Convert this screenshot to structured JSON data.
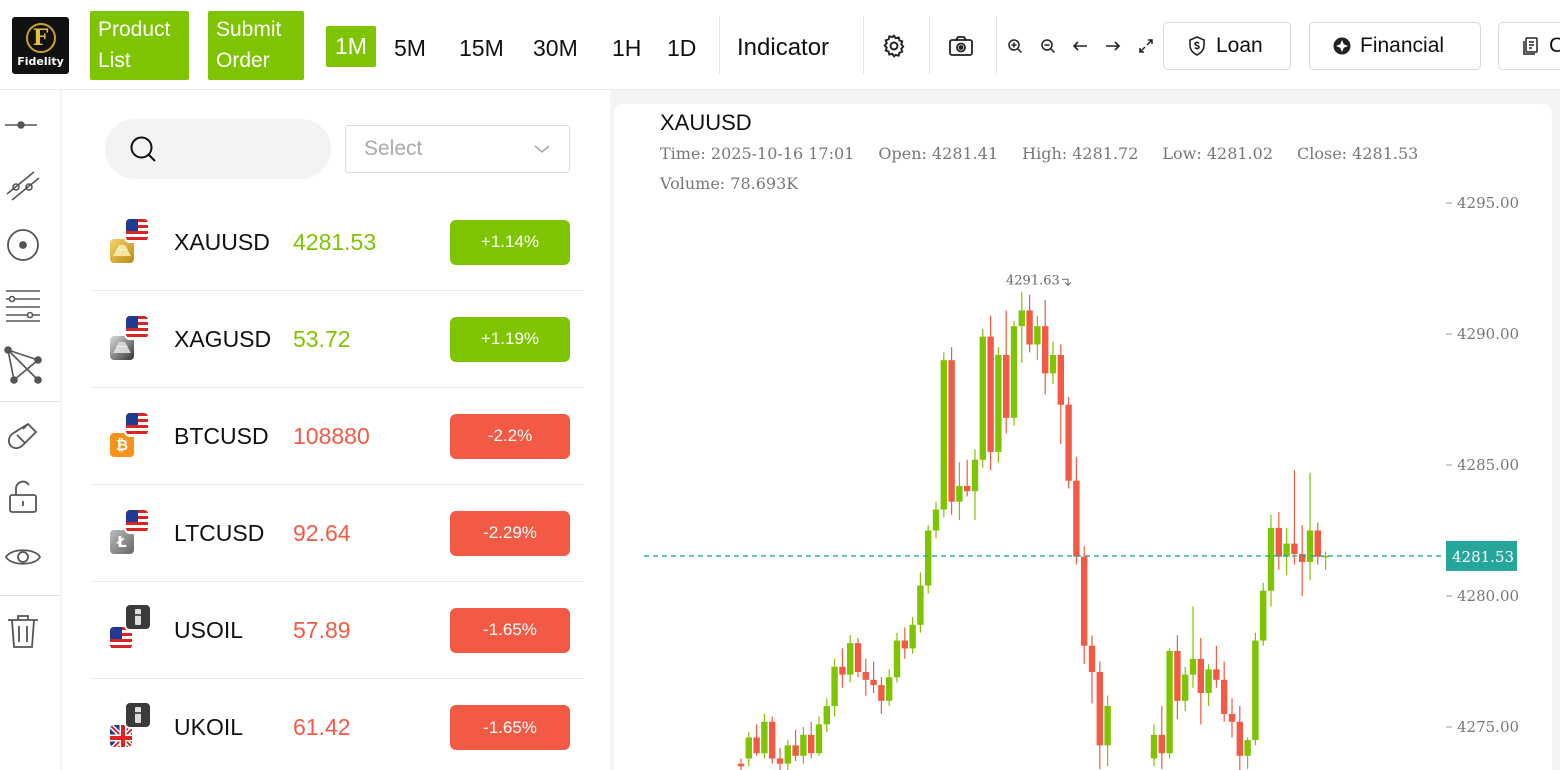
{
  "header": {
    "logo_text": "Fidelity",
    "logo_letter": "F",
    "product_list_label": "Product\nList",
    "submit_order_label": "Submit\nOrder",
    "timeframes": [
      "1M",
      "5M",
      "15M",
      "30M",
      "1H",
      "1D"
    ],
    "active_timeframe": "1M",
    "indicator_label": "Indicator",
    "loan_label": "Loan",
    "financial_label": "Financial",
    "third_pill_label": "C"
  },
  "search": {
    "placeholder": "",
    "select_placeholder": "Select"
  },
  "products": [
    {
      "symbol": "XAUUSD",
      "price": "4281.53",
      "change": "+1.14%",
      "direction": "up",
      "asset_icon": "gold-bars-icon",
      "flag": "us-flag-icon"
    },
    {
      "symbol": "XAGUSD",
      "price": "53.72",
      "change": "+1.19%",
      "direction": "up",
      "asset_icon": "silver-bars-icon",
      "flag": "us-flag-icon"
    },
    {
      "symbol": "BTCUSD",
      "price": "108880",
      "change": "-2.2%",
      "direction": "down",
      "asset_icon": "bitcoin-icon",
      "flag": "us-flag-icon"
    },
    {
      "symbol": "LTCUSD",
      "price": "92.64",
      "change": "-2.29%",
      "direction": "down",
      "asset_icon": "litecoin-icon",
      "flag": "us-flag-icon"
    },
    {
      "symbol": "USOIL",
      "price": "57.89",
      "change": "-1.65%",
      "direction": "down",
      "asset_icon": "oil-barrel-icon",
      "flag": "us-flag-icon"
    },
    {
      "symbol": "UKOIL",
      "price": "61.42",
      "change": "-1.65%",
      "direction": "down",
      "asset_icon": "oil-barrel-icon",
      "flag": "uk-flag-icon"
    }
  ],
  "colors": {
    "up": "#7fc400",
    "down": "#f25a45",
    "last_price_line": "#26a69a"
  },
  "chart_data": {
    "type": "candlestick",
    "symbol": "XAUUSD",
    "info": {
      "time": "Time: 2025-10-16 17:01",
      "open": "Open: 4281.41",
      "high": "High: 4281.72",
      "low": "Low: 4281.02",
      "close": "Close: 4281.53",
      "volume": "Volume: 78.693K"
    },
    "y_ticks": [
      "4295.00",
      "4290.00",
      "4285.00",
      "4280.00",
      "4275.00"
    ],
    "ylim": [
      4273.5,
      4295.5
    ],
    "last_price": "4281.53",
    "last_price_value": 4281.53,
    "max_label": "4291.63",
    "max_value": 4291.63,
    "candles": [
      [
        4273.6,
        4273.8,
        4273.2,
        4273.5
      ],
      [
        4273.8,
        4274.8,
        4273.5,
        4274.6
      ],
      [
        4274.6,
        4275.1,
        4273.9,
        4274.0
      ],
      [
        4274.0,
        4275.5,
        4273.8,
        4275.2
      ],
      [
        4275.2,
        4275.4,
        4273.6,
        4273.8
      ],
      [
        4273.8,
        4274.2,
        4273.1,
        4273.6
      ],
      [
        4273.6,
        4274.5,
        4273.3,
        4274.3
      ],
      [
        4274.3,
        4274.9,
        4273.7,
        4273.9
      ],
      [
        4273.9,
        4275.0,
        4273.6,
        4274.7
      ],
      [
        4274.7,
        4275.2,
        4273.8,
        4274.0
      ],
      [
        4274.0,
        4275.4,
        4273.9,
        4275.1
      ],
      [
        4275.1,
        4276.1,
        4274.8,
        4275.8
      ],
      [
        4275.8,
        4277.6,
        4275.4,
        4277.3
      ],
      [
        4277.3,
        4278.0,
        4276.5,
        4277.0
      ],
      [
        4277.0,
        4278.5,
        4276.7,
        4278.2
      ],
      [
        4278.2,
        4278.4,
        4276.9,
        4277.1
      ],
      [
        4277.1,
        4277.6,
        4276.2,
        4276.8
      ],
      [
        4276.8,
        4277.5,
        4276.3,
        4276.6
      ],
      [
        4276.6,
        4276.9,
        4275.5,
        4276.0
      ],
      [
        4276.0,
        4277.2,
        4275.8,
        4276.9
      ],
      [
        4276.9,
        4278.6,
        4276.7,
        4278.3
      ],
      [
        4278.3,
        4278.8,
        4277.6,
        4278.0
      ],
      [
        4278.0,
        4279.2,
        4277.8,
        4278.9
      ],
      [
        4278.9,
        4280.9,
        4278.6,
        4280.4
      ],
      [
        4280.4,
        4282.7,
        4280.1,
        4282.5
      ],
      [
        4282.5,
        4283.6,
        4282.2,
        4283.3
      ],
      [
        4283.3,
        4289.3,
        4283.0,
        4289.0
      ],
      [
        4289.0,
        4289.5,
        4283.1,
        4283.6
      ],
      [
        4283.6,
        4285.1,
        4282.9,
        4284.2
      ],
      [
        4284.2,
        4285.2,
        4283.8,
        4284.0
      ],
      [
        4284.0,
        4285.6,
        4282.9,
        4285.2
      ],
      [
        4285.2,
        4290.2,
        4284.9,
        4289.9
      ],
      [
        4289.9,
        4290.7,
        4284.8,
        4285.5
      ],
      [
        4285.5,
        4289.5,
        4285.1,
        4289.2
      ],
      [
        4289.2,
        4290.9,
        4286.2,
        4286.8
      ],
      [
        4286.8,
        4290.5,
        4286.5,
        4290.3
      ],
      [
        4290.3,
        4291.6,
        4288.9,
        4290.9
      ],
      [
        4290.9,
        4291.5,
        4289.3,
        4289.6
      ],
      [
        4289.6,
        4290.7,
        4289.0,
        4290.3
      ],
      [
        4290.3,
        4291.3,
        4287.7,
        4288.5
      ],
      [
        4288.5,
        4289.7,
        4288.1,
        4289.2
      ],
      [
        4289.2,
        4289.6,
        4285.8,
        4287.3
      ],
      [
        4287.3,
        4287.6,
        4284.1,
        4284.4
      ],
      [
        4284.4,
        4285.3,
        4281.2,
        4281.5
      ],
      [
        4281.5,
        4281.9,
        4277.4,
        4278.1
      ],
      [
        4278.1,
        4278.5,
        4275.9,
        4277.1
      ],
      [
        4277.1,
        4277.5,
        4273.4,
        4274.3
      ],
      [
        4274.3,
        4276.2,
        4273.5,
        4275.8
      ]
    ],
    "right_candles": [
      [
        4273.8,
        4275.1,
        4273.5,
        4274.7
      ],
      [
        4274.7,
        4275.8,
        4273.4,
        4274.0
      ],
      [
        4274.0,
        4278.0,
        4273.8,
        4277.9
      ],
      [
        4277.9,
        4278.5,
        4275.3,
        4276.0
      ],
      [
        4276.0,
        4277.3,
        4275.6,
        4277.0
      ],
      [
        4277.0,
        4279.6,
        4276.5,
        4277.6
      ],
      [
        4277.6,
        4278.4,
        4275.1,
        4276.3
      ],
      [
        4276.3,
        4277.4,
        4275.8,
        4277.2
      ],
      [
        4277.2,
        4278.1,
        4276.5,
        4276.8
      ],
      [
        4276.8,
        4277.5,
        4275.2,
        4275.5
      ],
      [
        4275.5,
        4276.1,
        4274.6,
        4275.2
      ],
      [
        4275.2,
        4275.8,
        4273.1,
        4273.9
      ],
      [
        4273.9,
        4274.6,
        4273.4,
        4274.5
      ],
      [
        4274.5,
        4278.6,
        4274.3,
        4278.3
      ],
      [
        4278.3,
        4280.5,
        4278.1,
        4280.2
      ],
      [
        4280.2,
        4283.1,
        4279.6,
        4282.6
      ],
      [
        4282.6,
        4283.2,
        4281.0,
        4281.5
      ],
      [
        4281.5,
        4282.6,
        4280.8,
        4282.0
      ],
      [
        4282.0,
        4284.8,
        4281.2,
        4281.6
      ],
      [
        4281.6,
        4282.7,
        4280.0,
        4281.3
      ],
      [
        4281.3,
        4284.7,
        4280.6,
        4282.5
      ],
      [
        4282.5,
        4282.8,
        4281.2,
        4281.5
      ],
      [
        4281.5,
        4281.7,
        4281.0,
        4281.53
      ]
    ]
  }
}
